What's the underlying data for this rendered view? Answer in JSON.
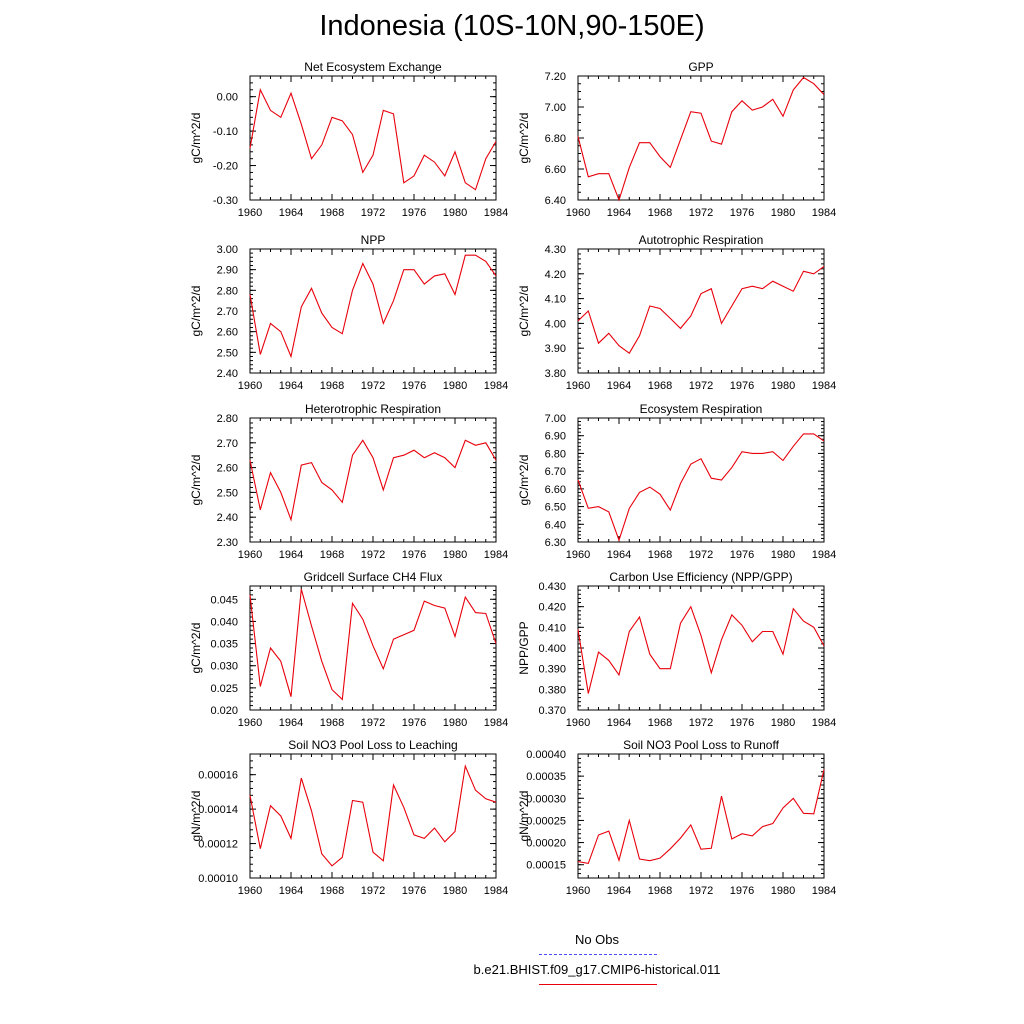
{
  "title": "Indonesia (10S-10N,90-150E)",
  "legend": {
    "obs_label": "No Obs",
    "obs_color": "#4a4aff",
    "model_label": "b.e21.BHIST.f09_g17.CMIP6-historical.011",
    "model_color": "#e8000b"
  },
  "chart_data": [
    {
      "type": "line",
      "title": "Net Ecosystem Exchange",
      "ylabel": "gC/m^2/d",
      "x": [
        1960,
        1961,
        1962,
        1963,
        1964,
        1965,
        1966,
        1967,
        1968,
        1969,
        1970,
        1971,
        1972,
        1973,
        1974,
        1975,
        1976,
        1977,
        1978,
        1979,
        1980,
        1981,
        1982,
        1983,
        1984
      ],
      "xticks": [
        "1960",
        "1964",
        "1968",
        "1972",
        "1976",
        "1980",
        "1984"
      ],
      "xlim": [
        1960,
        1984
      ],
      "ylim": [
        -0.3,
        0.06
      ],
      "yticks": [
        -0.3,
        -0.2,
        -0.1,
        0.0
      ],
      "ytick_labels": [
        "-0.30",
        "-0.20",
        "-0.10",
        "0.00"
      ],
      "yminor_step": 0.02,
      "series": [
        {
          "color": "#e8000b",
          "values": [
            -0.15,
            0.02,
            -0.04,
            -0.06,
            0.01,
            -0.08,
            -0.18,
            -0.14,
            -0.06,
            -0.07,
            -0.11,
            -0.22,
            -0.17,
            -0.04,
            -0.05,
            -0.25,
            -0.23,
            -0.17,
            -0.19,
            -0.23,
            -0.16,
            -0.25,
            -0.27,
            -0.18,
            -0.13
          ]
        }
      ]
    },
    {
      "type": "line",
      "title": "GPP",
      "ylabel": "gC/m^2/d",
      "x": [
        1960,
        1961,
        1962,
        1963,
        1964,
        1965,
        1966,
        1967,
        1968,
        1969,
        1970,
        1971,
        1972,
        1973,
        1974,
        1975,
        1976,
        1977,
        1978,
        1979,
        1980,
        1981,
        1982,
        1983,
        1984
      ],
      "xticks": [
        "1960",
        "1964",
        "1968",
        "1972",
        "1976",
        "1980",
        "1984"
      ],
      "xlim": [
        1960,
        1984
      ],
      "ylim": [
        6.4,
        7.2
      ],
      "yticks": [
        6.4,
        6.6,
        6.8,
        7.0,
        7.2
      ],
      "ytick_labels": [
        "6.40",
        "6.60",
        "6.80",
        "7.00",
        "7.20"
      ],
      "yminor_step": 0.05,
      "series": [
        {
          "color": "#e8000b",
          "values": [
            6.81,
            6.55,
            6.57,
            6.57,
            6.4,
            6.61,
            6.77,
            6.77,
            6.68,
            6.61,
            6.79,
            6.97,
            6.96,
            6.78,
            6.76,
            6.97,
            7.04,
            6.98,
            7.0,
            7.05,
            6.94,
            7.11,
            7.19,
            7.15,
            7.08
          ]
        }
      ]
    },
    {
      "type": "line",
      "title": "NPP",
      "ylabel": "gC/m^2/d",
      "x": [
        1960,
        1961,
        1962,
        1963,
        1964,
        1965,
        1966,
        1967,
        1968,
        1969,
        1970,
        1971,
        1972,
        1973,
        1974,
        1975,
        1976,
        1977,
        1978,
        1979,
        1980,
        1981,
        1982,
        1983,
        1984
      ],
      "xticks": [
        "1960",
        "1964",
        "1968",
        "1972",
        "1976",
        "1980",
        "1984"
      ],
      "xlim": [
        1960,
        1984
      ],
      "ylim": [
        2.4,
        3.0
      ],
      "yticks": [
        2.4,
        2.5,
        2.6,
        2.7,
        2.8,
        2.9,
        3.0
      ],
      "ytick_labels": [
        "2.40",
        "2.50",
        "2.60",
        "2.70",
        "2.80",
        "2.90",
        "3.00"
      ],
      "yminor_step": 0.02,
      "series": [
        {
          "color": "#e8000b",
          "values": [
            2.78,
            2.49,
            2.64,
            2.6,
            2.48,
            2.72,
            2.81,
            2.69,
            2.62,
            2.59,
            2.8,
            2.93,
            2.83,
            2.64,
            2.75,
            2.9,
            2.9,
            2.83,
            2.87,
            2.88,
            2.78,
            2.97,
            2.97,
            2.94,
            2.87
          ]
        }
      ]
    },
    {
      "type": "line",
      "title": "Autotrophic Respiration",
      "ylabel": "gC/m^2/d",
      "x": [
        1960,
        1961,
        1962,
        1963,
        1964,
        1965,
        1966,
        1967,
        1968,
        1969,
        1970,
        1971,
        1972,
        1973,
        1974,
        1975,
        1976,
        1977,
        1978,
        1979,
        1980,
        1981,
        1982,
        1983,
        1984
      ],
      "xticks": [
        "1960",
        "1964",
        "1968",
        "1972",
        "1976",
        "1980",
        "1984"
      ],
      "xlim": [
        1960,
        1984
      ],
      "ylim": [
        3.8,
        4.3
      ],
      "yticks": [
        3.8,
        3.9,
        4.0,
        4.1,
        4.2,
        4.3
      ],
      "ytick_labels": [
        "3.80",
        "3.90",
        "4.00",
        "4.10",
        "4.20",
        "4.30"
      ],
      "yminor_step": 0.02,
      "series": [
        {
          "color": "#e8000b",
          "values": [
            4.01,
            4.05,
            3.92,
            3.96,
            3.91,
            3.88,
            3.95,
            4.07,
            4.06,
            4.02,
            3.98,
            4.03,
            4.12,
            4.14,
            4.0,
            4.07,
            4.14,
            4.15,
            4.14,
            4.17,
            4.15,
            4.13,
            4.21,
            4.2,
            4.23
          ]
        }
      ]
    },
    {
      "type": "line",
      "title": "Heterotrophic Respiration",
      "ylabel": "gC/m^2/d",
      "x": [
        1960,
        1961,
        1962,
        1963,
        1964,
        1965,
        1966,
        1967,
        1968,
        1969,
        1970,
        1971,
        1972,
        1973,
        1974,
        1975,
        1976,
        1977,
        1978,
        1979,
        1980,
        1981,
        1982,
        1983,
        1984
      ],
      "xticks": [
        "1960",
        "1964",
        "1968",
        "1972",
        "1976",
        "1980",
        "1984"
      ],
      "xlim": [
        1960,
        1984
      ],
      "ylim": [
        2.3,
        2.8
      ],
      "yticks": [
        2.3,
        2.4,
        2.5,
        2.6,
        2.7,
        2.8
      ],
      "ytick_labels": [
        "2.30",
        "2.40",
        "2.50",
        "2.60",
        "2.70",
        "2.80"
      ],
      "yminor_step": 0.02,
      "series": [
        {
          "color": "#e8000b",
          "values": [
            2.63,
            2.43,
            2.58,
            2.5,
            2.39,
            2.61,
            2.62,
            2.54,
            2.51,
            2.46,
            2.65,
            2.71,
            2.64,
            2.51,
            2.64,
            2.65,
            2.67,
            2.64,
            2.66,
            2.64,
            2.6,
            2.71,
            2.69,
            2.7,
            2.63
          ]
        }
      ]
    },
    {
      "type": "line",
      "title": "Ecosystem Respiration",
      "ylabel": "gC/m^2/d",
      "x": [
        1960,
        1961,
        1962,
        1963,
        1964,
        1965,
        1966,
        1967,
        1968,
        1969,
        1970,
        1971,
        1972,
        1973,
        1974,
        1975,
        1976,
        1977,
        1978,
        1979,
        1980,
        1981,
        1982,
        1983,
        1984
      ],
      "xticks": [
        "1960",
        "1964",
        "1968",
        "1972",
        "1976",
        "1980",
        "1984"
      ],
      "xlim": [
        1960,
        1984
      ],
      "ylim": [
        6.3,
        7.0
      ],
      "yticks": [
        6.3,
        6.4,
        6.5,
        6.6,
        6.7,
        6.8,
        6.9,
        7.0
      ],
      "ytick_labels": [
        "6.30",
        "6.40",
        "6.50",
        "6.60",
        "6.70",
        "6.80",
        "6.90",
        "7.00"
      ],
      "yminor_step": 0.02,
      "series": [
        {
          "color": "#e8000b",
          "values": [
            6.65,
            6.49,
            6.5,
            6.47,
            6.31,
            6.49,
            6.58,
            6.61,
            6.57,
            6.48,
            6.63,
            6.74,
            6.77,
            6.66,
            6.65,
            6.72,
            6.81,
            6.8,
            6.8,
            6.81,
            6.76,
            6.84,
            6.91,
            6.91,
            6.87
          ]
        }
      ]
    },
    {
      "type": "line",
      "title": "Gridcell Surface CH4 Flux",
      "ylabel": "gC/m^2/d",
      "x": [
        1960,
        1961,
        1962,
        1963,
        1964,
        1965,
        1966,
        1967,
        1968,
        1969,
        1970,
        1971,
        1972,
        1973,
        1974,
        1975,
        1976,
        1977,
        1978,
        1979,
        1980,
        1981,
        1982,
        1983,
        1984
      ],
      "xticks": [
        "1960",
        "1964",
        "1968",
        "1972",
        "1976",
        "1980",
        "1984"
      ],
      "xlim": [
        1960,
        1984
      ],
      "ylim": [
        0.02,
        0.048
      ],
      "yticks": [
        0.02,
        0.025,
        0.03,
        0.035,
        0.04,
        0.045
      ],
      "ytick_labels": [
        "0.020",
        "0.025",
        "0.030",
        "0.035",
        "0.040",
        "0.045"
      ],
      "yminor_step": 0.001,
      "series": [
        {
          "color": "#e8000b",
          "values": [
            0.046,
            0.0253,
            0.034,
            0.031,
            0.023,
            0.0473,
            0.039,
            0.031,
            0.0246,
            0.0224,
            0.0441,
            0.0405,
            0.0345,
            0.0293,
            0.036,
            0.037,
            0.038,
            0.0446,
            0.0436,
            0.043,
            0.0366,
            0.0455,
            0.042,
            0.0418,
            0.035
          ]
        }
      ]
    },
    {
      "type": "line",
      "title": "Carbon Use Efficiency (NPP/GPP)",
      "ylabel": "NPP/GPP",
      "x": [
        1960,
        1961,
        1962,
        1963,
        1964,
        1965,
        1966,
        1967,
        1968,
        1969,
        1970,
        1971,
        1972,
        1973,
        1974,
        1975,
        1976,
        1977,
        1978,
        1979,
        1980,
        1981,
        1982,
        1983,
        1984
      ],
      "xticks": [
        "1960",
        "1964",
        "1968",
        "1972",
        "1976",
        "1980",
        "1984"
      ],
      "xlim": [
        1960,
        1984
      ],
      "ylim": [
        0.37,
        0.43
      ],
      "yticks": [
        0.37,
        0.38,
        0.39,
        0.4,
        0.41,
        0.42,
        0.43
      ],
      "ytick_labels": [
        "0.370",
        "0.380",
        "0.390",
        "0.400",
        "0.410",
        "0.420",
        "0.430"
      ],
      "yminor_step": 0.002,
      "series": [
        {
          "color": "#e8000b",
          "values": [
            0.409,
            0.378,
            0.398,
            0.394,
            0.387,
            0.408,
            0.415,
            0.397,
            0.39,
            0.39,
            0.412,
            0.42,
            0.406,
            0.388,
            0.404,
            0.416,
            0.411,
            0.403,
            0.408,
            0.408,
            0.397,
            0.419,
            0.413,
            0.41,
            0.401
          ]
        }
      ]
    },
    {
      "type": "line",
      "title": "Soil NO3 Pool Loss to Leaching",
      "ylabel": "gN/m^2/d",
      "x": [
        1960,
        1961,
        1962,
        1963,
        1964,
        1965,
        1966,
        1967,
        1968,
        1969,
        1970,
        1971,
        1972,
        1973,
        1974,
        1975,
        1976,
        1977,
        1978,
        1979,
        1980,
        1981,
        1982,
        1983,
        1984
      ],
      "xticks": [
        "1960",
        "1964",
        "1968",
        "1972",
        "1976",
        "1980",
        "1984"
      ],
      "xlim": [
        1960,
        1984
      ],
      "ylim": [
        0.0001,
        0.000172
      ],
      "yticks": [
        0.0001,
        0.00012,
        0.00014,
        0.00016
      ],
      "ytick_labels": [
        "0.00010",
        "0.00012",
        "0.00014",
        "0.00016"
      ],
      "yminor_step": 4e-06,
      "series": [
        {
          "color": "#e8000b",
          "values": [
            0.000148,
            0.000117,
            0.000142,
            0.000136,
            0.000123,
            0.000158,
            0.000139,
            0.000114,
            0.000107,
            0.000112,
            0.000145,
            0.000144,
            0.000115,
            0.00011,
            0.000154,
            0.000141,
            0.000125,
            0.000123,
            0.000129,
            0.000121,
            0.000127,
            0.000165,
            0.000151,
            0.000146,
            0.000144
          ]
        }
      ]
    },
    {
      "type": "line",
      "title": "Soil NO3 Pool Loss to Runoff",
      "ylabel": "gN/m^2/d",
      "x": [
        1960,
        1961,
        1962,
        1963,
        1964,
        1965,
        1966,
        1967,
        1968,
        1969,
        1970,
        1971,
        1972,
        1973,
        1974,
        1975,
        1976,
        1977,
        1978,
        1979,
        1980,
        1981,
        1982,
        1983,
        1984
      ],
      "xticks": [
        "1960",
        "1964",
        "1968",
        "1972",
        "1976",
        "1980",
        "1984"
      ],
      "xlim": [
        1960,
        1984
      ],
      "ylim": [
        0.00012,
        0.0004
      ],
      "yticks": [
        0.00015,
        0.0002,
        0.00025,
        0.0003,
        0.00035,
        0.0004
      ],
      "ytick_labels": [
        "0.00015",
        "0.00020",
        "0.00025",
        "0.00030",
        "0.00035",
        "0.00040"
      ],
      "yminor_step": 1e-05,
      "series": [
        {
          "color": "#e8000b",
          "values": [
            0.000157,
            0.000153,
            0.000217,
            0.000226,
            0.00016,
            0.00025,
            0.000163,
            0.000159,
            0.000165,
            0.000186,
            0.00021,
            0.00024,
            0.000185,
            0.000187,
            0.000305,
            0.000208,
            0.00022,
            0.000215,
            0.000236,
            0.000243,
            0.000278,
            0.0003,
            0.000266,
            0.000265,
            0.000365
          ]
        }
      ]
    }
  ]
}
